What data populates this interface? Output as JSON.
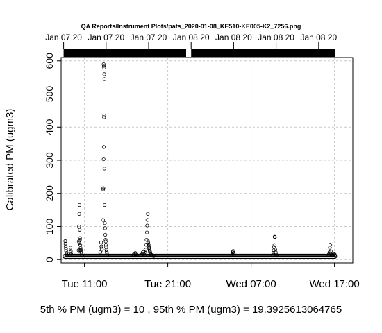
{
  "chart_data": {
    "type": "scatter",
    "title": "QA Reports/Instrument Plots/pats_2020-01-08_KE510-KE005-K2_7256.png",
    "ylabel": "Calibrated PM (ugm3)",
    "xlabel": "",
    "x_ticks": [
      "Tue 11:00",
      "Tue 21:00",
      "Wed 07:00",
      "Wed 17:00"
    ],
    "x_tick_hours": [
      11,
      21,
      31,
      41
    ],
    "xlim_hours": [
      8.2,
      43.2
    ],
    "y_ticks": [
      0,
      100,
      200,
      300,
      400,
      500,
      600
    ],
    "ylim": [
      -10,
      610
    ],
    "grid": true,
    "top_axis_labels": [
      "Jan 07 20",
      "Jan 07 20",
      "Jan 07 20",
      "Jan 08 20",
      "Jan 08 20",
      "Jan 08 20",
      "Jan 08 20"
    ],
    "top_axis_hours": [
      8.5,
      13.6,
      18.7,
      23.8,
      28.9,
      34.0,
      39.1
    ],
    "status_bars": [
      {
        "start_hour": 8.5,
        "end_hour": 23.2
      },
      {
        "start_hour": 23.8,
        "end_hour": 41.1
      }
    ],
    "series": [
      {
        "baseline_value": 10,
        "baseline_hours": [
          8.6,
          41.1
        ],
        "points": [
          [
            8.7,
            56
          ],
          [
            8.72,
            48
          ],
          [
            8.75,
            40
          ],
          [
            8.78,
            33
          ],
          [
            8.8,
            26
          ],
          [
            8.83,
            20
          ],
          [
            8.86,
            15
          ],
          [
            8.9,
            12
          ],
          [
            9.3,
            22
          ],
          [
            9.33,
            36
          ],
          [
            9.36,
            25
          ],
          [
            9.4,
            18
          ],
          [
            10.3,
            28
          ],
          [
            10.32,
            55
          ],
          [
            10.35,
            100
          ],
          [
            10.38,
            138
          ],
          [
            10.4,
            165
          ],
          [
            10.43,
            90
          ],
          [
            10.46,
            65
          ],
          [
            10.5,
            45
          ],
          [
            10.53,
            35
          ],
          [
            10.56,
            30
          ],
          [
            10.6,
            25
          ],
          [
            10.64,
            20
          ],
          [
            10.68,
            15
          ],
          [
            10.72,
            12
          ],
          [
            10.4,
            50
          ],
          [
            10.45,
            60
          ],
          [
            10.5,
            28
          ],
          [
            12.9,
            22
          ],
          [
            12.95,
            38
          ],
          [
            13.0,
            52
          ],
          [
            13.05,
            40
          ],
          [
            13.1,
            30
          ],
          [
            13.22,
            120
          ],
          [
            13.25,
            212
          ],
          [
            13.27,
            216
          ],
          [
            13.3,
            303
          ],
          [
            13.32,
            340
          ],
          [
            13.35,
            430
          ],
          [
            13.37,
            435
          ],
          [
            13.4,
            275
          ],
          [
            13.42,
            165
          ],
          [
            13.3,
            590
          ],
          [
            13.33,
            585
          ],
          [
            13.36,
            580
          ],
          [
            13.38,
            560
          ],
          [
            13.4,
            545
          ],
          [
            13.45,
            110
          ],
          [
            13.48,
            95
          ],
          [
            13.5,
            75
          ],
          [
            13.53,
            60
          ],
          [
            13.55,
            55
          ],
          [
            13.58,
            45
          ],
          [
            13.6,
            38
          ],
          [
            13.63,
            30
          ],
          [
            13.66,
            25
          ],
          [
            13.7,
            20
          ],
          [
            13.73,
            15
          ],
          [
            13.76,
            12
          ],
          [
            16.8,
            12
          ],
          [
            16.9,
            15
          ],
          [
            17.0,
            18
          ],
          [
            17.1,
            20
          ],
          [
            17.2,
            17
          ],
          [
            17.3,
            13
          ],
          [
            17.8,
            14
          ],
          [
            17.9,
            18
          ],
          [
            18.0,
            22
          ],
          [
            18.1,
            25
          ],
          [
            18.15,
            18
          ],
          [
            18.2,
            14
          ],
          [
            18.3,
            20
          ],
          [
            18.35,
            30
          ],
          [
            18.4,
            45
          ],
          [
            18.45,
            60
          ],
          [
            18.5,
            82
          ],
          [
            18.53,
            103
          ],
          [
            18.56,
            120
          ],
          [
            18.6,
            138
          ],
          [
            18.63,
            55
          ],
          [
            18.66,
            50
          ],
          [
            18.7,
            45
          ],
          [
            18.73,
            40
          ],
          [
            18.76,
            35
          ],
          [
            18.8,
            30
          ],
          [
            18.83,
            27
          ],
          [
            18.86,
            24
          ],
          [
            18.9,
            21
          ],
          [
            18.95,
            18
          ],
          [
            19.0,
            15
          ],
          [
            19.1,
            13
          ],
          [
            19.2,
            12
          ],
          [
            19.3,
            11
          ],
          [
            28.7,
            14
          ],
          [
            28.75,
            18
          ],
          [
            28.8,
            22
          ],
          [
            28.85,
            26
          ],
          [
            28.9,
            20
          ],
          [
            28.95,
            15
          ],
          [
            33.6,
            14
          ],
          [
            33.65,
            20
          ],
          [
            33.7,
            28
          ],
          [
            33.75,
            38
          ],
          [
            33.8,
            44
          ],
          [
            33.82,
            69
          ],
          [
            33.85,
            68
          ],
          [
            33.9,
            30
          ],
          [
            33.95,
            22
          ],
          [
            34.0,
            16
          ],
          [
            34.05,
            12
          ],
          [
            40.3,
            13
          ],
          [
            40.35,
            18
          ],
          [
            40.4,
            22
          ],
          [
            40.45,
            36
          ],
          [
            40.5,
            45
          ],
          [
            40.55,
            25
          ],
          [
            40.6,
            18
          ],
          [
            40.7,
            14
          ],
          [
            40.8,
            15
          ],
          [
            40.9,
            16
          ],
          [
            41.0,
            18
          ],
          [
            41.05,
            14
          ]
        ]
      }
    ]
  },
  "footer": {
    "stats_text": "5th % PM (ugm3) =  10 , 95th % PM (ugm3)  =  19.3925613064765"
  }
}
